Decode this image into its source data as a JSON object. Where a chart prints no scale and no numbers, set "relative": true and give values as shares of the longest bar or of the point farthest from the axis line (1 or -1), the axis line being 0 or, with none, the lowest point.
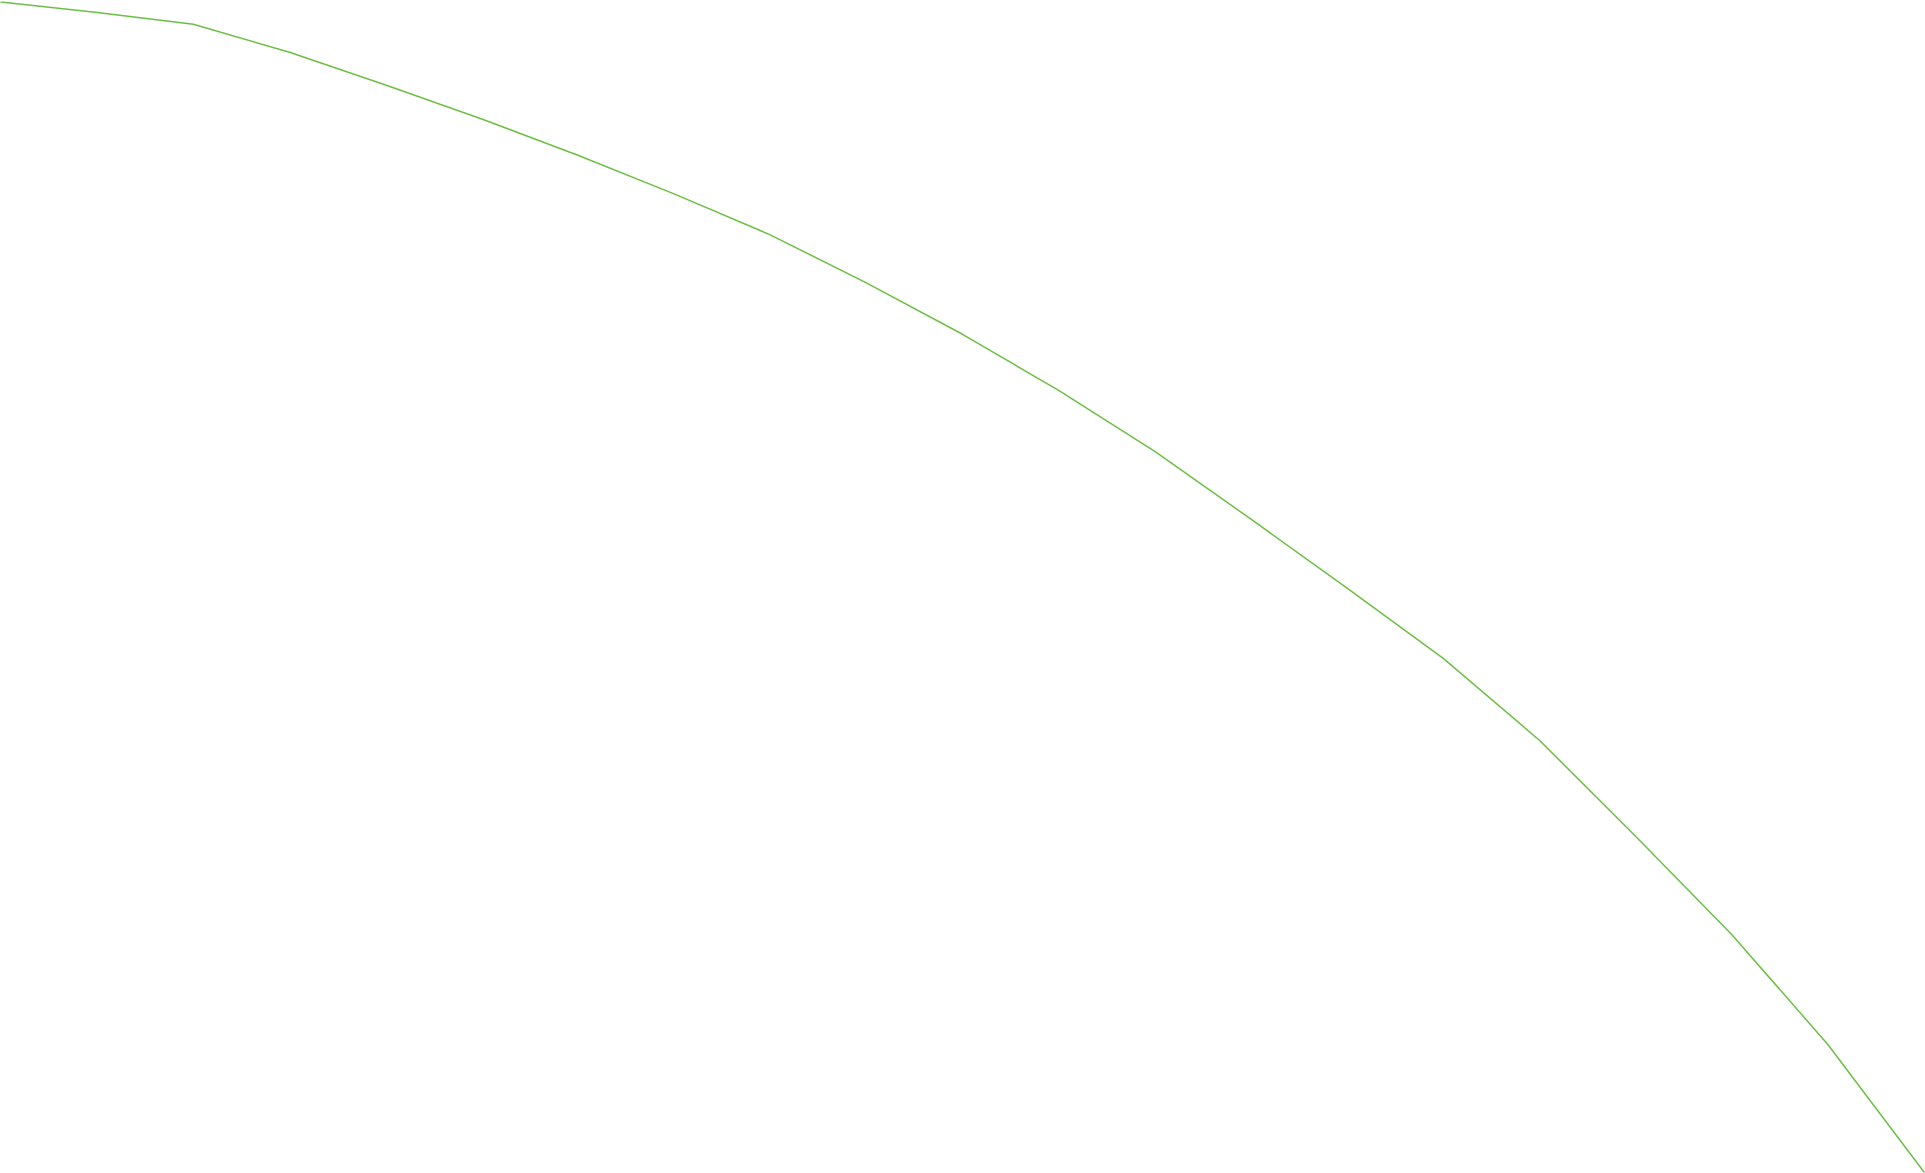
{
  "chart_data": {
    "type": "line",
    "relative": true,
    "marker": "none",
    "categories": [
      null,
      null,
      null,
      null,
      null,
      null,
      null,
      null,
      null,
      null,
      null,
      null,
      null,
      null,
      null,
      null,
      null,
      null,
      null,
      null,
      null
    ],
    "series": [
      {
        "color": "#6cbf45",
        "values": [
          1,
          0.991,
          0.981,
          0.957,
          0.929,
          0.9,
          0.869,
          0.836,
          0.801,
          0.76,
          0.716,
          0.668,
          0.616,
          0.558,
          0.499,
          0.439,
          0.369,
          0.287,
          0.203,
          0.109,
          0
        ]
      }
    ]
  }
}
